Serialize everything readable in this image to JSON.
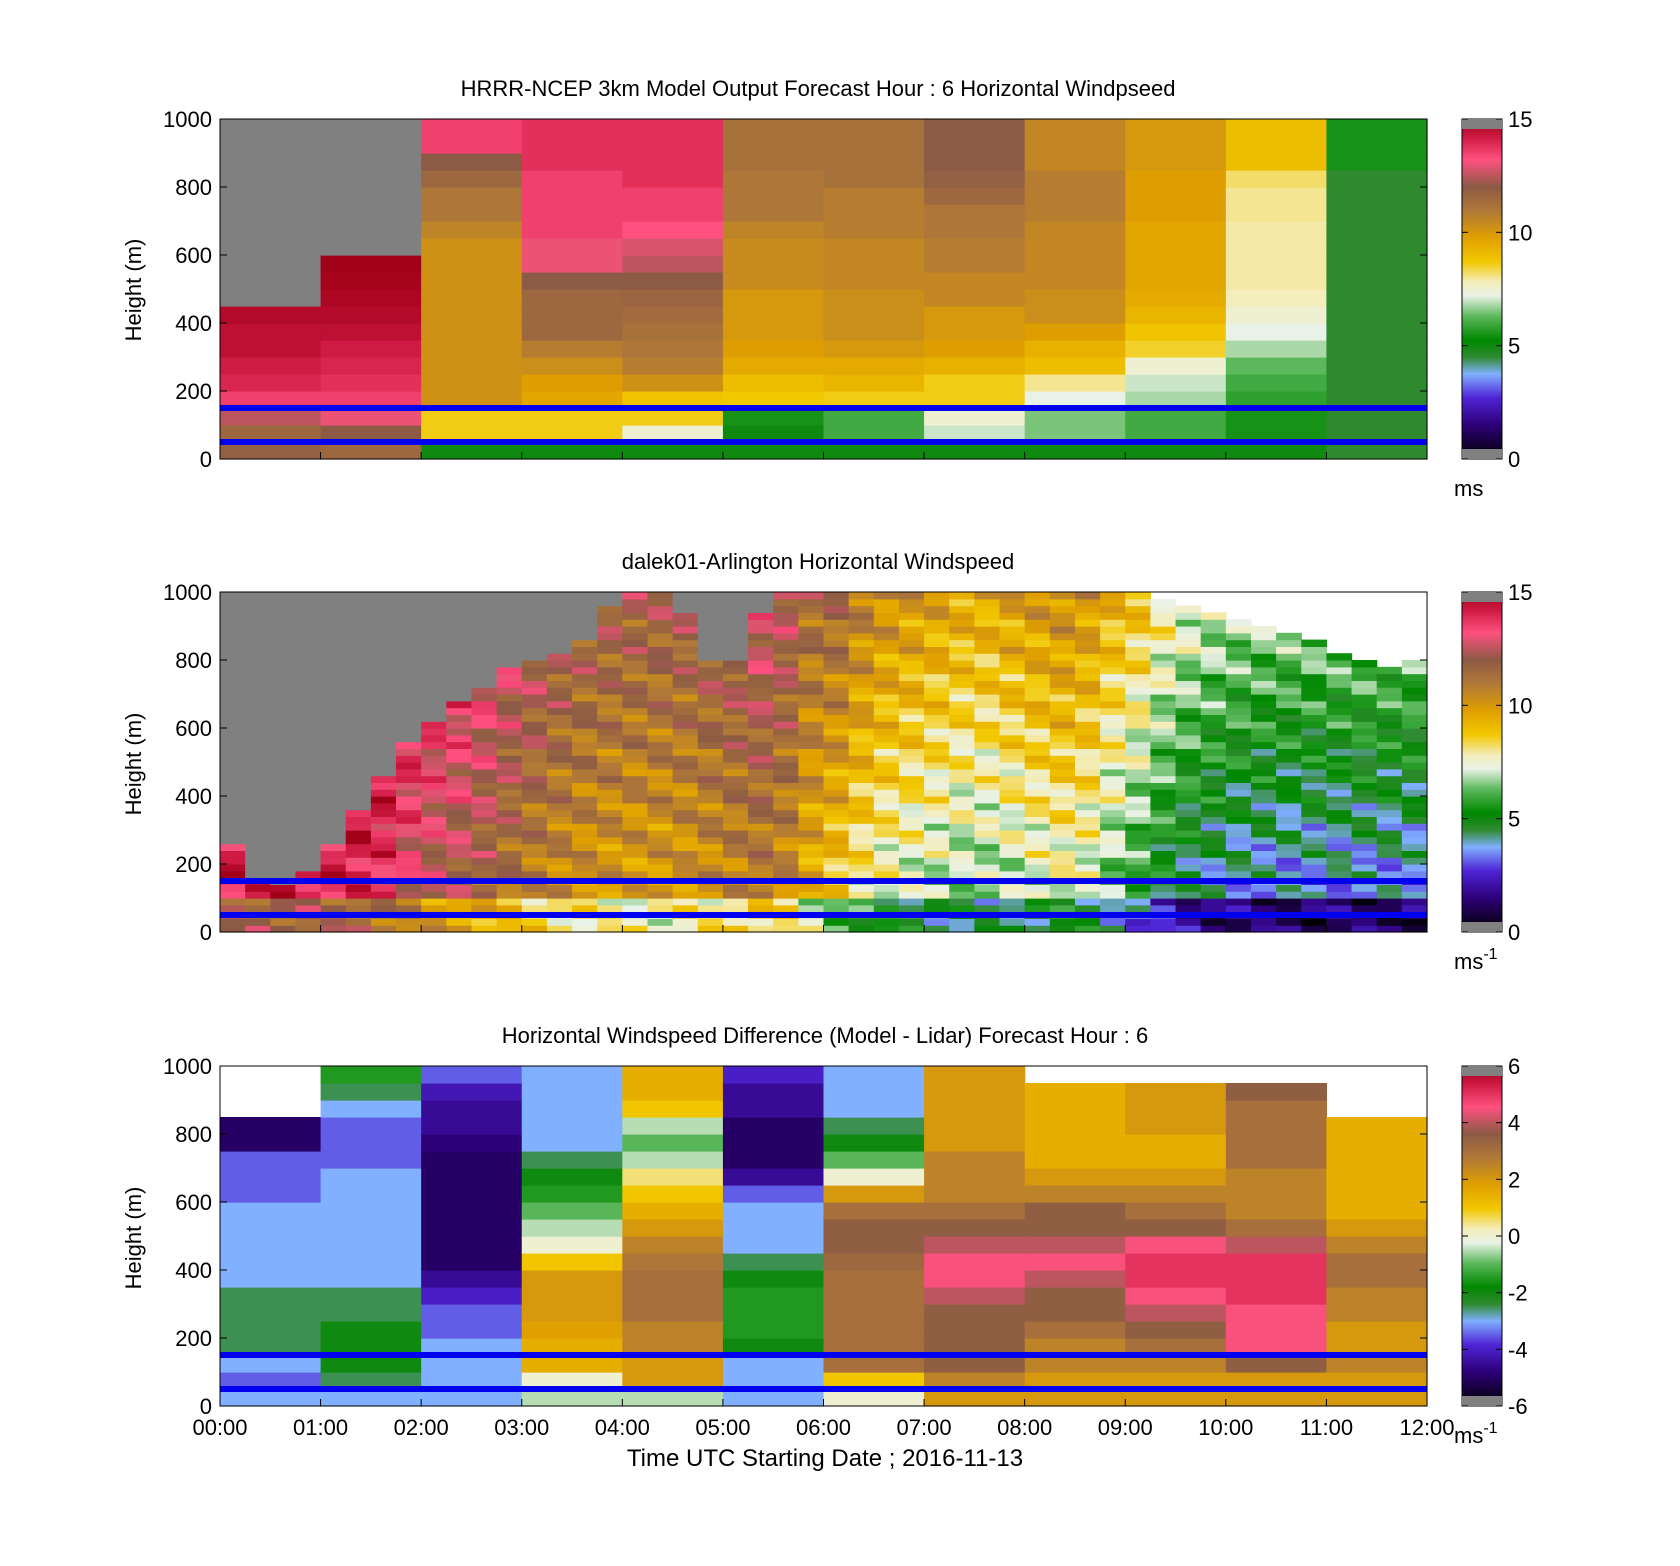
{
  "xlabel": "Time UTC  Starting Date ; 2016-11-13",
  "x_ticks": [
    "00:00",
    "01:00",
    "02:00",
    "03:00",
    "04:00",
    "05:00",
    "06:00",
    "07:00",
    "08:00",
    "09:00",
    "10:00",
    "11:00",
    "12:00"
  ],
  "y_ticks": [
    "0",
    "200",
    "400",
    "600",
    "800",
    "1000"
  ],
  "ylabel": "Height (m)",
  "reference_lines_m": [
    50,
    150
  ],
  "reference_line_color": "#0000ee",
  "chart_data": [
    {
      "type": "heatmap",
      "title": "HRRR-NCEP 3km Model Output   Forecast Hour : 6 Horizontal Windpseed",
      "ylabel": "Height (m)",
      "xlim_hours": [
        0,
        12
      ],
      "ylim": [
        0,
        1000
      ],
      "colorbar": {
        "min": 0,
        "max": 15,
        "ticks": [
          "0",
          "5",
          "10",
          "15"
        ],
        "unit": "ms",
        "unit_sup": ""
      },
      "heights_m": [
        25,
        75,
        125,
        175,
        225,
        275,
        325,
        375,
        425,
        475,
        525,
        575,
        625,
        675,
        725,
        775,
        825,
        875,
        925,
        975
      ],
      "times_h": [
        0.5,
        1.5,
        2.5,
        3.5,
        4.5,
        5.5,
        6.5,
        7.5,
        8.5,
        9.5,
        10.5,
        11.5
      ],
      "values_by_time": [
        [
          11.8,
          11.5,
          12.5,
          13.5,
          14,
          14.2,
          14.5,
          14.5,
          14.7,
          -1,
          -1,
          -1,
          -1,
          -1,
          -1,
          -1,
          -1,
          -1,
          -1,
          -1
        ],
        [
          11.5,
          12,
          13,
          13.5,
          13.8,
          14,
          14.2,
          14.5,
          14.7,
          14.8,
          14.9,
          15,
          -1,
          -1,
          -1,
          -1,
          -1,
          -1,
          -1,
          -1
        ],
        [
          5,
          8.6,
          8.6,
          10.2,
          10.2,
          10.2,
          10.2,
          10.2,
          10.2,
          10.2,
          10.2,
          10.2,
          10.2,
          10.6,
          11,
          11,
          11.5,
          12,
          13.5,
          13.5
        ],
        [
          5,
          8.6,
          8.6,
          9.6,
          9.8,
          10.3,
          10.8,
          11.5,
          11.5,
          11.5,
          12,
          13,
          13,
          13.5,
          13.5,
          13.5,
          13.5,
          13.8,
          13.8,
          13.8
        ],
        [
          5,
          7.5,
          8.6,
          8.8,
          10.2,
          10.8,
          11,
          11.2,
          11.4,
          11.6,
          12,
          12.5,
          12.8,
          13.2,
          13.5,
          13.5,
          13.8,
          13.8,
          13.8,
          13.8
        ],
        [
          5,
          5,
          5.5,
          8.7,
          9,
          9.5,
          9.8,
          10,
          10,
          10,
          10.4,
          10.4,
          10.4,
          10.6,
          11,
          11,
          11,
          11.2,
          11.2,
          11.2
        ],
        [
          5,
          6,
          6,
          8.6,
          9.2,
          9.5,
          10,
          10.3,
          10.3,
          10.3,
          10.5,
          10.5,
          10.5,
          10.8,
          10.8,
          10.8,
          11.2,
          11.2,
          11.2,
          11.2
        ],
        [
          5,
          7,
          7.5,
          8.6,
          8.6,
          9.3,
          9.8,
          10,
          10,
          10.5,
          10.5,
          10.8,
          10.8,
          11,
          11,
          11.5,
          11.8,
          12,
          12,
          12
        ],
        [
          5,
          6.5,
          6.5,
          7.2,
          8,
          9,
          9.3,
          9.8,
          10.3,
          10.3,
          10.5,
          10.5,
          10.5,
          10.5,
          10.8,
          10.8,
          10.8,
          10.5,
          10.5,
          10.5
        ],
        [
          5,
          6,
          6,
          6.8,
          7,
          7.5,
          8.5,
          8.8,
          9.2,
          9.5,
          9.6,
          9.6,
          9.6,
          9.6,
          9.8,
          9.8,
          9.8,
          10,
          10,
          10
        ],
        [
          5,
          5.5,
          5.5,
          5.8,
          6,
          6.3,
          6.8,
          7.2,
          7.5,
          7.8,
          7.9,
          7.9,
          7.9,
          7.9,
          8,
          8,
          8.2,
          9,
          9,
          9
        ],
        [
          4.5,
          4.5,
          4.5,
          4.5,
          4.5,
          4.5,
          4.5,
          4.5,
          4.5,
          4.5,
          4.5,
          4.5,
          4.5,
          4.5,
          4.5,
          4.5,
          4.5,
          5.5,
          5.5,
          5.5
        ]
      ]
    },
    {
      "type": "heatmap",
      "title": "dalek01-Arlington  Horizontal Windspeed",
      "ylabel": "Height (m)",
      "xlim_hours": [
        0,
        12
      ],
      "ylim": [
        0,
        1000
      ],
      "colorbar": {
        "min": 0,
        "max": 15,
        "ticks": [
          "0",
          "5",
          "10",
          "15"
        ],
        "unit": "ms",
        "unit_sup": "-1"
      },
      "profile_hours": [
        0,
        0.5,
        1,
        1.5,
        2,
        2.5,
        3,
        3.5,
        4,
        4.5,
        5,
        5.5,
        6,
        6.5,
        7,
        7.5,
        8,
        8.5,
        9,
        9.5,
        10,
        10.5,
        11,
        11.5,
        12
      ],
      "profile_speed_ms": [
        13.5,
        13.8,
        13.6,
        13.5,
        12,
        11.5,
        10.5,
        9.8,
        9.5,
        9.5,
        10,
        10.5,
        8.5,
        7,
        6.5,
        6,
        6.5,
        7,
        5.5,
        3.8,
        3.2,
        3,
        3,
        3,
        3
      ],
      "data_top_m": [
        300,
        120,
        200,
        400,
        600,
        700,
        800,
        820,
        1000,
        1000,
        720,
        1000,
        1000,
        1000,
        1000,
        1000,
        1000,
        1000,
        1000,
        980,
        920,
        880,
        840,
        780,
        800
      ],
      "missing_color_value": -1
    },
    {
      "type": "heatmap",
      "title": "Horizontal Windspeed Difference (Model - Lidar) Forecast Hour : 6",
      "ylabel": "Height (m)",
      "xlabel": "Time UTC  Starting Date ; 2016-11-13",
      "xlim_hours": [
        0,
        12
      ],
      "ylim": [
        0,
        1000
      ],
      "colorbar": {
        "min": -6,
        "max": 6,
        "ticks": [
          "-6",
          "-4",
          "-2",
          "0",
          "2",
          "4",
          "6"
        ],
        "unit": "ms",
        "unit_sup": "-1"
      },
      "heights_m": [
        25,
        75,
        125,
        175,
        225,
        275,
        325,
        375,
        425,
        475,
        525,
        575,
        625,
        675,
        725,
        775,
        825,
        875,
        925,
        975
      ],
      "times_h": [
        0.5,
        1.5,
        2.5,
        3.5,
        4.5,
        5.5,
        6.5,
        7.5,
        8.5,
        9.5,
        10.5,
        11.5
      ],
      "values_by_time": [
        [
          -3,
          -3.5,
          -3,
          -2.5,
          -2.5,
          -2.5,
          -2.5,
          -3,
          -3,
          -3,
          -3,
          -3,
          -3.5,
          -3.5,
          -3.5,
          -5,
          -5,
          null,
          null,
          null
        ],
        [
          -3,
          -2.5,
          -2,
          -2,
          -2,
          -2.5,
          -2.5,
          -3,
          -3,
          -3,
          -3,
          -3,
          -3,
          -3,
          -3.5,
          -3.5,
          -3.5,
          -3,
          -2.5,
          -1.5
        ],
        [
          -3,
          -3,
          -3,
          -3,
          -3.5,
          -3.5,
          -4,
          -4.5,
          -5,
          -5,
          -5,
          -5,
          -5,
          -5,
          -5,
          -4.8,
          -4.5,
          -4.5,
          -4.2,
          -3.5
        ],
        [
          -0.5,
          0,
          1.5,
          1.5,
          1.8,
          2,
          2,
          2,
          1,
          0,
          -0.5,
          -1,
          -1.5,
          -2,
          -2.5,
          -3,
          -3,
          -3,
          -3,
          -3
        ],
        [
          -0.5,
          2,
          2,
          2.5,
          2.5,
          3,
          3,
          3,
          2.8,
          2.5,
          2,
          1.5,
          1,
          0.5,
          -0.5,
          -1,
          -0.5,
          1,
          1.5,
          1.5
        ],
        [
          -3,
          -3,
          -3,
          -2,
          -1.5,
          -1.5,
          -1.5,
          -2,
          -2.5,
          -3,
          -3,
          -3,
          -3.5,
          -4.5,
          -5,
          -5,
          -5,
          -4.5,
          -4.5,
          -4
        ],
        [
          0,
          1,
          3,
          3,
          3,
          3,
          3,
          3,
          3.2,
          3.5,
          3.5,
          3,
          2,
          0,
          -1,
          -2,
          -2.5,
          -3,
          -3,
          -3
        ],
        [
          2,
          2.5,
          3.5,
          3.5,
          3.5,
          3.5,
          4,
          4.5,
          4.5,
          4,
          3.5,
          3,
          2.5,
          2.5,
          2.5,
          2,
          2,
          2,
          2,
          2
        ],
        [
          2,
          2,
          2.5,
          2.5,
          3,
          3.5,
          3.5,
          4,
          4.5,
          4,
          3.5,
          3.5,
          2.5,
          2,
          1.5,
          1.5,
          1.5,
          1.5,
          1.5,
          null
        ],
        [
          2,
          2,
          2.5,
          3,
          3.5,
          4,
          4.5,
          5,
          5,
          4.5,
          3.5,
          3,
          2.5,
          2,
          1.5,
          1.5,
          2,
          2,
          2,
          null
        ],
        [
          2,
          2,
          3.5,
          4.5,
          4.5,
          4.5,
          5,
          5,
          5,
          4,
          3,
          2.5,
          2.5,
          2.5,
          3,
          3,
          3,
          3,
          3.5,
          null
        ],
        [
          2,
          2,
          2.5,
          2,
          2,
          2.5,
          2.5,
          3,
          3,
          2.5,
          2,
          1.5,
          1.5,
          1.5,
          1.5,
          1.5,
          1.5,
          null,
          null,
          null
        ]
      ]
    }
  ]
}
